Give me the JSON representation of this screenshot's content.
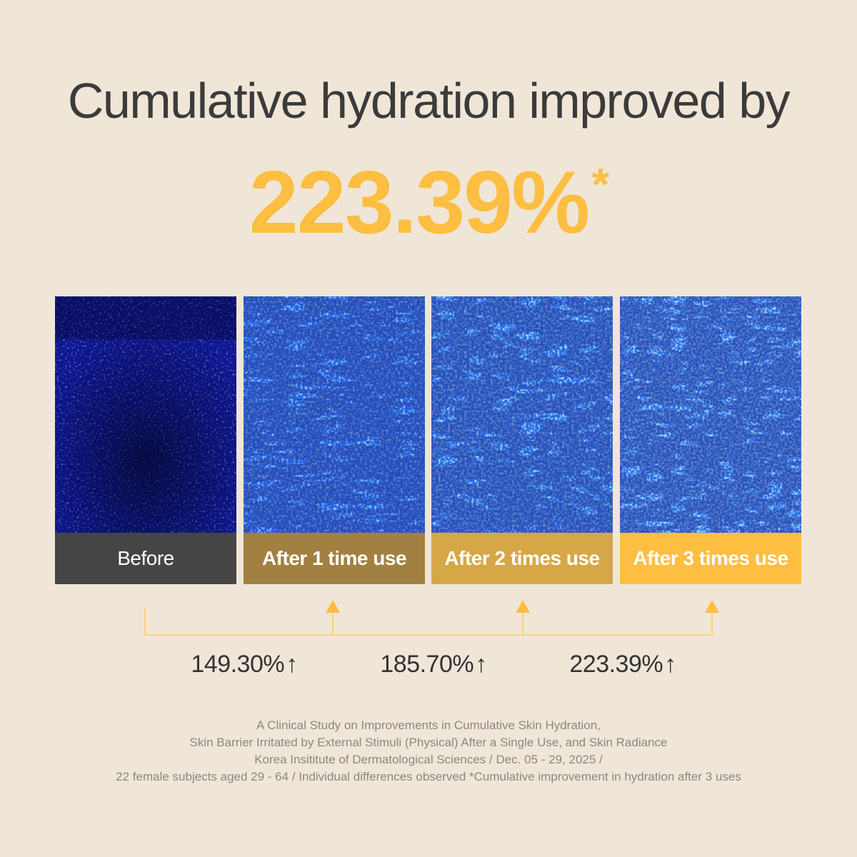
{
  "headline": "Cumulative hydration improved by",
  "highlight": {
    "value": "223.39%",
    "asterisk": "*",
    "color": "#fdbe42"
  },
  "panels": [
    {
      "label": "Before",
      "color": "#454545"
    },
    {
      "label": "After 1 time use",
      "color": "#a28041"
    },
    {
      "label": "After 2 times use",
      "color": "#d6a746"
    },
    {
      "label": "After 3 times use",
      "color": "#fdbe42"
    }
  ],
  "increases": [
    {
      "value": "149.30%",
      "icon": "arrow-up-icon",
      "glyph": "↑"
    },
    {
      "value": "185.70%",
      "icon": "arrow-up-icon",
      "glyph": "↑"
    },
    {
      "value": "223.39%",
      "icon": "arrow-up-icon",
      "glyph": "↑"
    }
  ],
  "footnote": [
    "A Clinical Study on Improvements in Cumulative Skin Hydration,",
    "Skin Barrier Irritated by External Stimuli (Physical) After a Single Use, and Skin Radiance",
    "Korea Insititute of Dermatological Sciences / Dec. 05 - 29, 2025 /",
    "22 female subjects aged 29 - 64 / Individual differences observed  *Cumulative improvement in hydration after 3 uses"
  ],
  "colors": {
    "background": "#efe6d8",
    "connector": "#fdd07a",
    "connector_arrow": "#fdbe42"
  }
}
